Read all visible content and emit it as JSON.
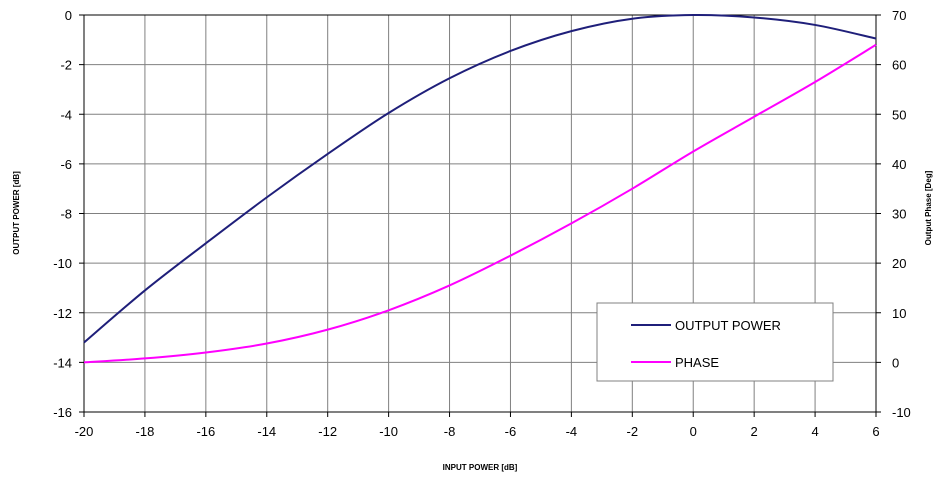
{
  "chart_data": {
    "type": "line",
    "xlabel": "INPUT POWER [dB]",
    "ylabel": "OUTPUT POWER [dB]",
    "y2label": "Output Phase [Deg]",
    "xlim": [
      -20,
      6
    ],
    "ylim": [
      -16,
      0
    ],
    "y2lim": [
      -10,
      70
    ],
    "xticks": [
      "-20",
      "-18",
      "-16",
      "-14",
      "-12",
      "-10",
      "-8",
      "-6",
      "-4",
      "-2",
      "0",
      "2",
      "4",
      "6"
    ],
    "yticks": [
      "0",
      "-2",
      "-4",
      "-6",
      "-8",
      "-10",
      "-12",
      "-14",
      "-16"
    ],
    "y2ticks": [
      "70",
      "60",
      "50",
      "40",
      "30",
      "20",
      "10",
      "0",
      "-10"
    ],
    "grid": true,
    "legend": "bottom-right",
    "series": [
      {
        "name": "OUTPUT POWER",
        "axis": "left",
        "color": "#1f1f7a",
        "x": [
          -20,
          -18,
          -16,
          -14,
          -12,
          -10,
          -8,
          -6,
          -4,
          -2,
          0,
          2,
          4,
          6
        ],
        "y": [
          -13.2,
          -11.1,
          -9.2,
          -7.35,
          -5.6,
          -3.95,
          -2.55,
          -1.45,
          -0.65,
          -0.15,
          0,
          -0.1,
          -0.4,
          -0.95
        ]
      },
      {
        "name": "PHASE",
        "axis": "right",
        "color": "#ff00ff",
        "x": [
          -20,
          -18,
          -16,
          -14,
          -12,
          -10,
          -8,
          -6,
          -4,
          -2,
          0,
          2,
          4,
          6
        ],
        "y": [
          0,
          0.8,
          2,
          3.8,
          6.6,
          10.5,
          15.5,
          21.5,
          28,
          35,
          42.5,
          49.5,
          56.5,
          64
        ]
      }
    ]
  }
}
